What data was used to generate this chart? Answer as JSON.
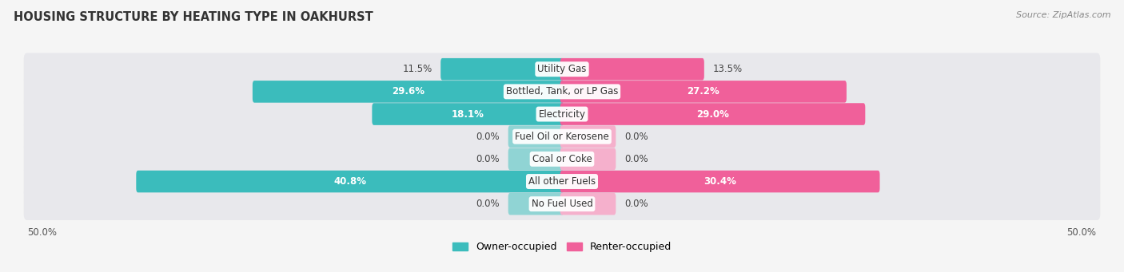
{
  "title": "HOUSING STRUCTURE BY HEATING TYPE IN OAKHURST",
  "source": "Source: ZipAtlas.com",
  "categories": [
    "Utility Gas",
    "Bottled, Tank, or LP Gas",
    "Electricity",
    "Fuel Oil or Kerosene",
    "Coal or Coke",
    "All other Fuels",
    "No Fuel Used"
  ],
  "owner_values": [
    11.5,
    29.6,
    18.1,
    0.0,
    0.0,
    40.8,
    0.0
  ],
  "renter_values": [
    13.5,
    27.2,
    29.0,
    0.0,
    0.0,
    30.4,
    0.0
  ],
  "owner_color_strong": "#3BBCBC",
  "owner_color_light": "#90D4D4",
  "renter_color_strong": "#F0609A",
  "renter_color_light": "#F5B0CC",
  "row_bg_color": "#E8E8EC",
  "bg_color": "#F5F5F5",
  "max_val": 50.0,
  "title_fontsize": 10.5,
  "label_fontsize": 8.5,
  "value_fontsize": 8.5,
  "legend_fontsize": 9,
  "source_fontsize": 8,
  "min_bar_size": 5.0,
  "strong_threshold": 5.0
}
